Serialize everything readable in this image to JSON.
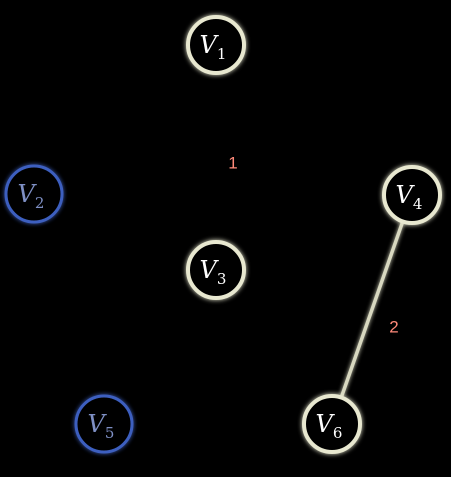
{
  "colors": {
    "background": "#000000",
    "active_node_stroke": "#e8e8d0",
    "active_node_glow": "#c8c8a0",
    "active_node_text": "#ffffff",
    "inactive_node_stroke": "#3d5fbf",
    "inactive_node_glow": "#2a4aa8",
    "inactive_node_text": "#7e8fc4",
    "edge": "#d8d8c0",
    "edge_weight": "#ff8a7a"
  },
  "graph": {
    "nodes": [
      {
        "id": "V1",
        "letter": "V",
        "sub": "1",
        "active": true
      },
      {
        "id": "V2",
        "letter": "V",
        "sub": "2",
        "active": false
      },
      {
        "id": "V3",
        "letter": "V",
        "sub": "3",
        "active": true
      },
      {
        "id": "V4",
        "letter": "V",
        "sub": "4",
        "active": true
      },
      {
        "id": "V5",
        "letter": "V",
        "sub": "5",
        "active": false
      },
      {
        "id": "V6",
        "letter": "V",
        "sub": "6",
        "active": true
      }
    ],
    "edges": [
      {
        "from": "V1",
        "to": "V3",
        "weight": "1"
      },
      {
        "from": "V4",
        "to": "V6",
        "weight": "2"
      }
    ]
  }
}
